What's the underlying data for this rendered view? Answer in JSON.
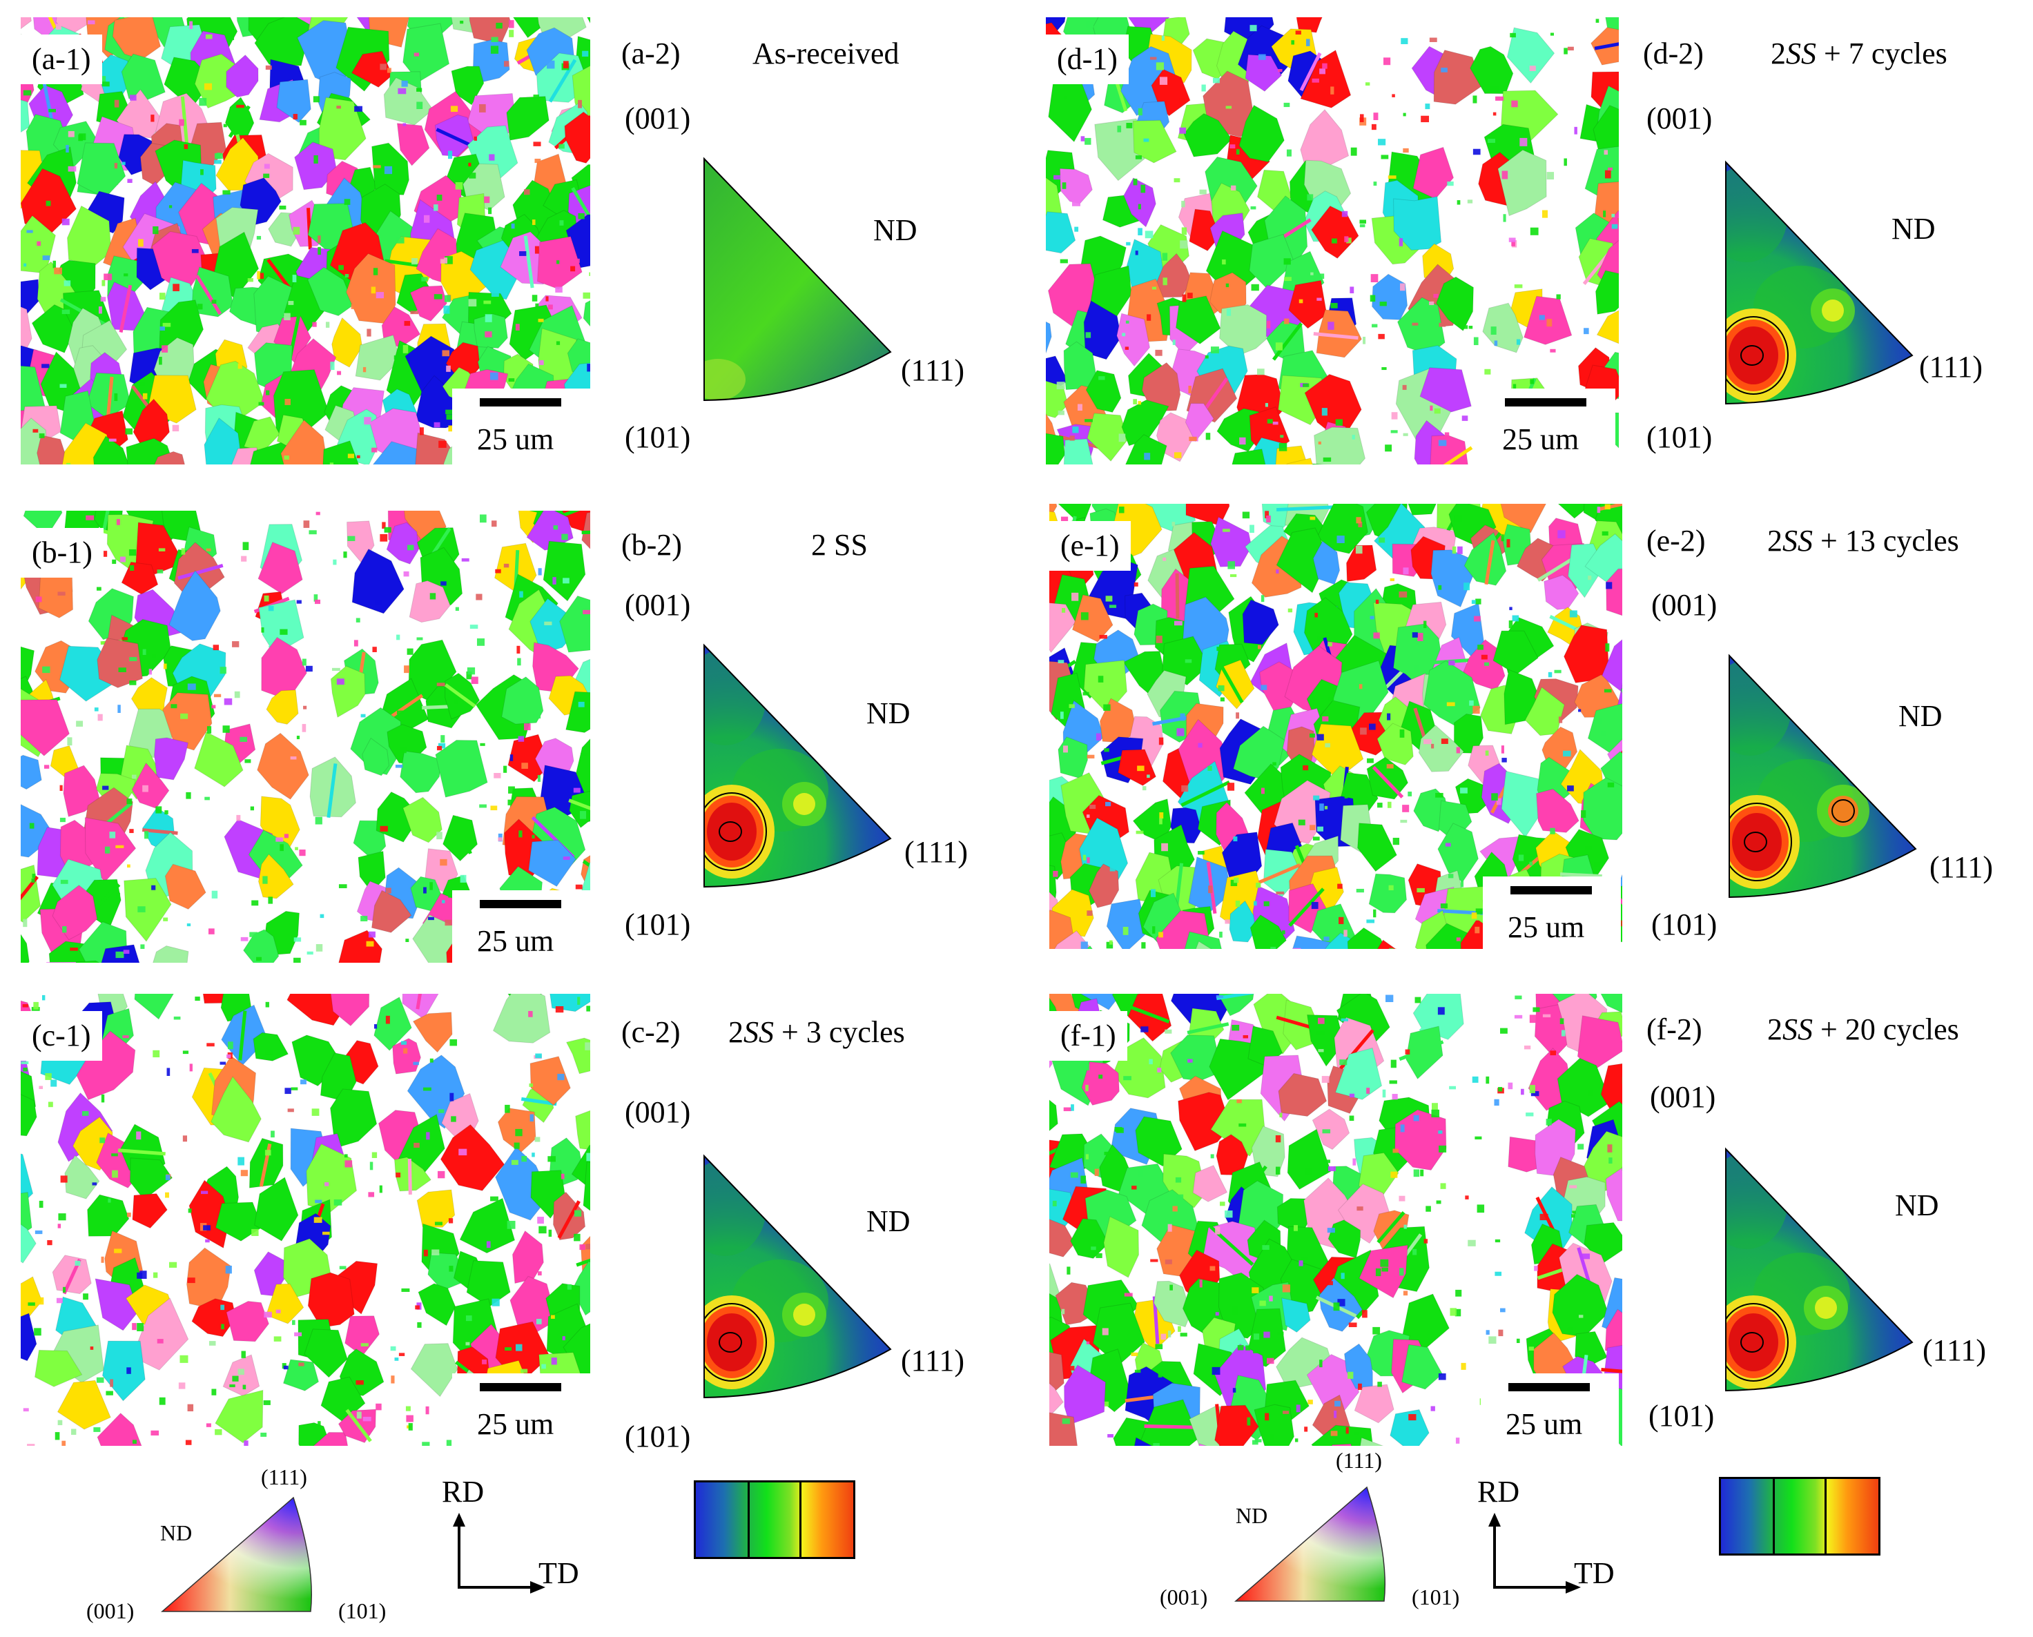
{
  "panels": [
    {
      "id": "a",
      "map_label": "(a-1)",
      "pf_label": "(a-2)",
      "condition": "As-received",
      "scale": "25 um",
      "nd": "ND",
      "p001": "(001)",
      "p101": "(101)",
      "p111": "(111)"
    },
    {
      "id": "b",
      "map_label": "(b-1)",
      "pf_label": "(b-2)",
      "condition": "2 SS",
      "scale": "25 um",
      "nd": "ND",
      "p001": "(001)",
      "p101": "(101)",
      "p111": "(111)"
    },
    {
      "id": "c",
      "map_label": "(c-1)",
      "pf_label": "(c-2)",
      "condition": "2SS + 3 cycles",
      "scale": "25 um",
      "nd": "ND",
      "p001": "(001)",
      "p101": "(101)",
      "p111": "(111)"
    },
    {
      "id": "d",
      "map_label": "(d-1)",
      "pf_label": "(d-2)",
      "condition": "2SS + 7 cycles",
      "scale": "25 um",
      "nd": "ND",
      "p001": "(001)",
      "p101": "(101)",
      "p111": "(111)"
    },
    {
      "id": "e",
      "map_label": "(e-1)",
      "pf_label": "(e-2)",
      "condition": "2SS + 13 cycles",
      "scale": "25 um",
      "nd": "ND",
      "p001": "(001)",
      "p101": "(101)",
      "p111": "(111)"
    },
    {
      "id": "f",
      "map_label": "(f-1)",
      "pf_label": "(f-2)",
      "condition": "2SS + 20 cycles",
      "scale": "25 um",
      "nd": "ND",
      "p001": "(001)",
      "p101": "(101)",
      "p111": "(111)"
    }
  ],
  "legend": {
    "key_nd": "ND",
    "key_111": "(111)",
    "key_001": "(001)",
    "key_101": "(101)",
    "rd": "RD",
    "td": "TD"
  },
  "colors": {
    "grain_palette": [
      "#10e010",
      "#30f050",
      "#ff1010",
      "#ff40b0",
      "#c040ff",
      "#1010e0",
      "#20e0e0",
      "#ffa0d0",
      "#80ff40",
      "#ff8040",
      "#ffe000",
      "#a0f0a0",
      "#40a0ff",
      "#e06060",
      "#60ffc0",
      "#f070f0"
    ],
    "pf_low": "#1f2bd6",
    "pf_mid": "#12e01a",
    "pf_high": "#f04010"
  }
}
